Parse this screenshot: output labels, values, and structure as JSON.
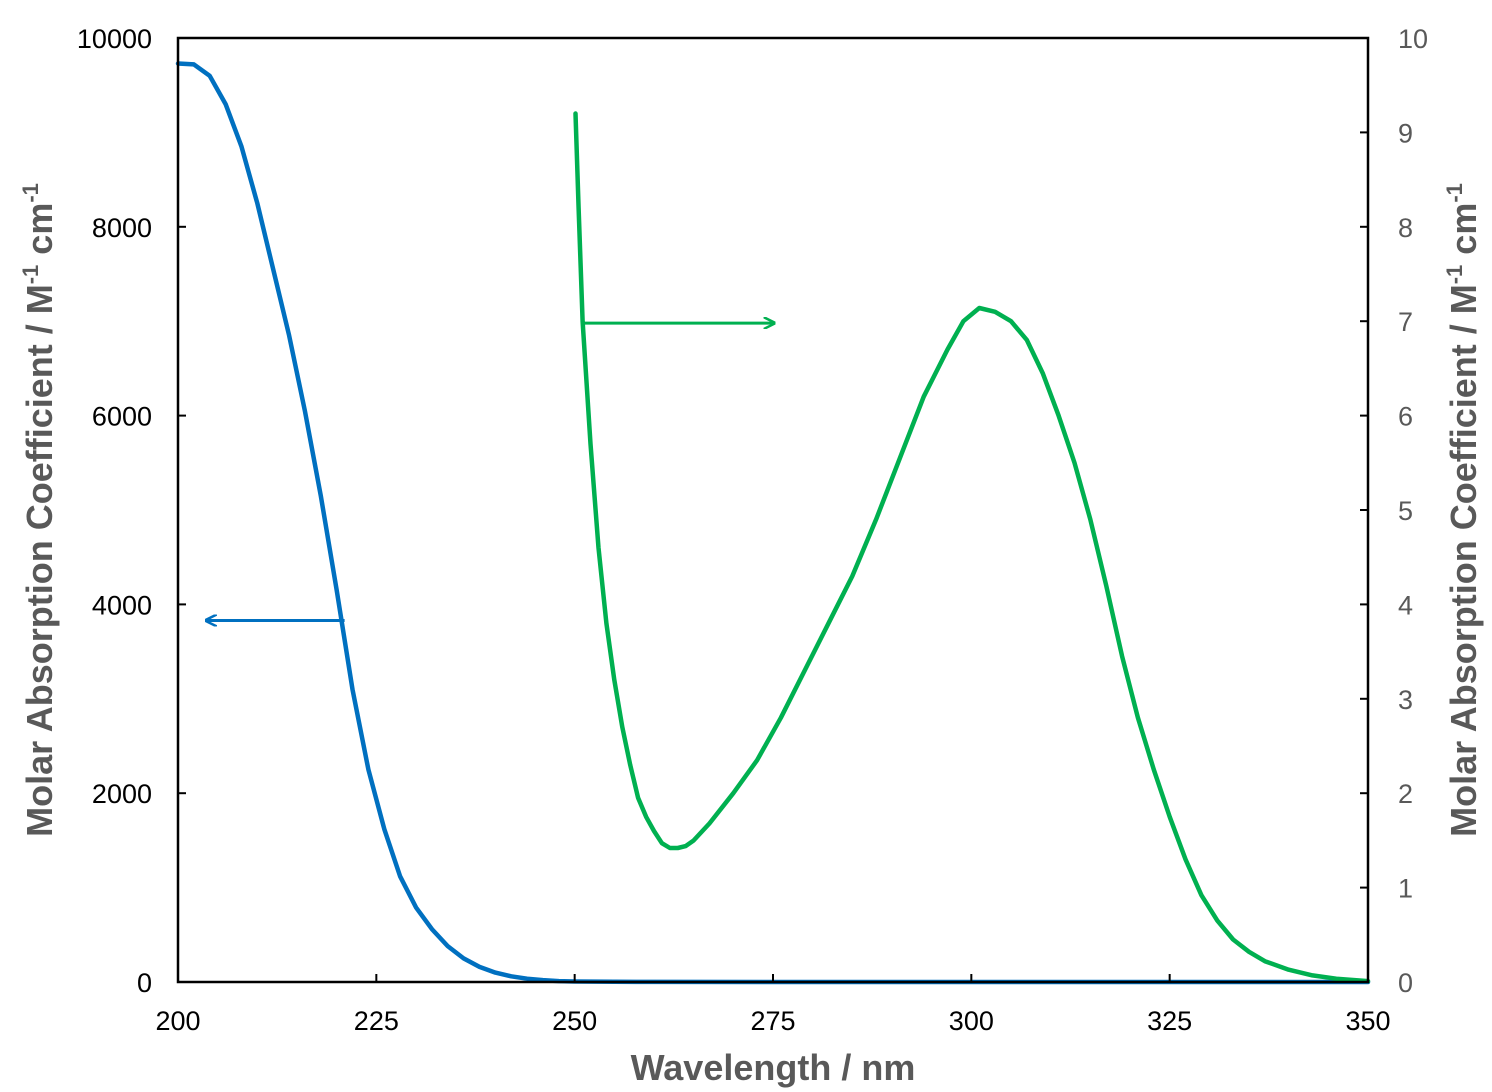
{
  "chart_data": {
    "type": "line",
    "xlabel": "Wavelength / nm",
    "ylabel": {
      "main": "Molar Absorption Coefficient / M",
      "sup1": "-1",
      "mid": " cm",
      "sup2": "-1"
    },
    "y2label": {
      "main": "Molar Absorption Coefficient / M",
      "sup1": "-1",
      "mid": " cm",
      "sup2": "-1"
    },
    "xlim": [
      200,
      350
    ],
    "ylim": [
      0,
      10000
    ],
    "y2lim": [
      0,
      10
    ],
    "x_ticks": [
      200,
      225,
      250,
      275,
      300,
      325,
      350
    ],
    "y_ticks": [
      0,
      2000,
      4000,
      6000,
      8000,
      10000
    ],
    "y2_ticks": [
      0,
      1,
      2,
      3,
      4,
      5,
      6,
      7,
      8,
      9,
      10
    ],
    "grid": false,
    "series": [
      {
        "axis": "left",
        "color": "#0070C0",
        "points": [
          [
            200,
            9730
          ],
          [
            202,
            9720
          ],
          [
            204,
            9600
          ],
          [
            206,
            9300
          ],
          [
            208,
            8850
          ],
          [
            210,
            8250
          ],
          [
            212,
            7550
          ],
          [
            214,
            6850
          ],
          [
            216,
            6050
          ],
          [
            218,
            5150
          ],
          [
            220,
            4150
          ],
          [
            222,
            3100
          ],
          [
            224,
            2250
          ],
          [
            226,
            1620
          ],
          [
            228,
            1120
          ],
          [
            230,
            790
          ],
          [
            232,
            560
          ],
          [
            234,
            380
          ],
          [
            236,
            250
          ],
          [
            238,
            160
          ],
          [
            240,
            100
          ],
          [
            242,
            60
          ],
          [
            244,
            35
          ],
          [
            246,
            20
          ],
          [
            248,
            10
          ],
          [
            250,
            5
          ],
          [
            255,
            2
          ],
          [
            260,
            1
          ],
          [
            280,
            0
          ],
          [
            300,
            0
          ],
          [
            350,
            0
          ]
        ]
      },
      {
        "axis": "right",
        "color": "#00B050",
        "points": [
          [
            250.1,
            9.2
          ],
          [
            250.5,
            8.2
          ],
          [
            251,
            7.0
          ],
          [
            252,
            5.7
          ],
          [
            253,
            4.6
          ],
          [
            254,
            3.8
          ],
          [
            255,
            3.2
          ],
          [
            256,
            2.7
          ],
          [
            257,
            2.3
          ],
          [
            258,
            1.95
          ],
          [
            259,
            1.75
          ],
          [
            260,
            1.6
          ],
          [
            261,
            1.47
          ],
          [
            262,
            1.42
          ],
          [
            263,
            1.42
          ],
          [
            264,
            1.44
          ],
          [
            265,
            1.5
          ],
          [
            267,
            1.68
          ],
          [
            270,
            2.0
          ],
          [
            273,
            2.35
          ],
          [
            276,
            2.8
          ],
          [
            279,
            3.3
          ],
          [
            282,
            3.8
          ],
          [
            285,
            4.3
          ],
          [
            288,
            4.9
          ],
          [
            291,
            5.55
          ],
          [
            294,
            6.2
          ],
          [
            297,
            6.7
          ],
          [
            299,
            7.0
          ],
          [
            301,
            7.14
          ],
          [
            303,
            7.1
          ],
          [
            305,
            7.0
          ],
          [
            307,
            6.8
          ],
          [
            309,
            6.45
          ],
          [
            311,
            6.0
          ],
          [
            313,
            5.5
          ],
          [
            315,
            4.9
          ],
          [
            317,
            4.2
          ],
          [
            319,
            3.45
          ],
          [
            321,
            2.8
          ],
          [
            323,
            2.25
          ],
          [
            325,
            1.75
          ],
          [
            327,
            1.3
          ],
          [
            329,
            0.92
          ],
          [
            331,
            0.65
          ],
          [
            333,
            0.45
          ],
          [
            335,
            0.32
          ],
          [
            337,
            0.22
          ],
          [
            340,
            0.13
          ],
          [
            343,
            0.07
          ],
          [
            346,
            0.035
          ],
          [
            350,
            0.01
          ]
        ]
      }
    ],
    "annotations": [
      {
        "type": "arrow",
        "color": "#0070C0",
        "from": [
          221,
          3830
        ],
        "to": [
          203.5,
          3830
        ]
      },
      {
        "type": "arrow",
        "color": "#00B050",
        "from": [
          251.2,
          6.98
        ],
        "to": [
          275.2,
          6.98
        ]
      }
    ]
  }
}
